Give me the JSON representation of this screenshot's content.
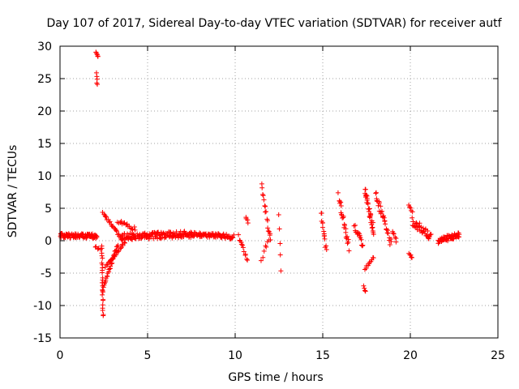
{
  "chart_data": {
    "type": "scatter",
    "title": "Day 107 of 2017, Sidereal Day-to-day VTEC variation (SDTVAR) for receiver autf",
    "xlabel": "GPS time / hours",
    "ylabel": "SDTVAR / TECUs",
    "xlim": [
      0,
      25
    ],
    "ylim": [
      -15,
      30
    ],
    "xticks": [
      0,
      5,
      10,
      15,
      20,
      25
    ],
    "yticks": [
      -15,
      -10,
      -5,
      0,
      5,
      10,
      15,
      20,
      25,
      30
    ],
    "grid": true,
    "marker": "+",
    "series_color": "#ff0000",
    "series": [
      {
        "name": "SDTVAR",
        "segments": [
          {
            "x0": 0.0,
            "x1": 2.1,
            "y0": 0.8,
            "y1": 0.7,
            "spread": 0.7,
            "n": 95
          },
          {
            "x0": 2.05,
            "x1": 2.15,
            "y0": 29.0,
            "y1": 28.6,
            "spread": 0.4,
            "n": 6
          },
          {
            "x0": 2.08,
            "x1": 2.12,
            "y0": 25.8,
            "y1": 24.0,
            "spread": 0.3,
            "n": 5
          },
          {
            "x0": 2.0,
            "x1": 2.3,
            "y0": -0.8,
            "y1": -1.5,
            "spread": 0.4,
            "n": 5
          },
          {
            "x0": 2.4,
            "x1": 2.45,
            "y0": -1.0,
            "y1": -11.8,
            "spread": 0.6,
            "n": 24
          },
          {
            "x0": 2.45,
            "x1": 3.3,
            "y0": -7.5,
            "y1": -0.5,
            "spread": 0.5,
            "n": 28
          },
          {
            "x0": 2.6,
            "x1": 3.7,
            "y0": -4.0,
            "y1": -0.2,
            "spread": 0.4,
            "n": 22
          },
          {
            "x0": 2.45,
            "x1": 3.5,
            "y0": 4.2,
            "y1": 0.4,
            "spread": 0.4,
            "n": 22
          },
          {
            "x0": 3.3,
            "x1": 4.3,
            "y0": 3.0,
            "y1": 1.8,
            "spread": 0.5,
            "n": 16
          },
          {
            "x0": 3.5,
            "x1": 7.5,
            "y0": 0.6,
            "y1": 1.0,
            "spread": 1.0,
            "n": 150
          },
          {
            "x0": 7.5,
            "x1": 9.9,
            "y0": 1.0,
            "y1": 0.6,
            "spread": 0.7,
            "n": 80
          },
          {
            "x0": 10.2,
            "x1": 10.7,
            "y0": 0.6,
            "y1": -3.0,
            "spread": 0.8,
            "n": 12
          },
          {
            "x0": 10.6,
            "x1": 10.75,
            "y0": 3.8,
            "y1": 2.8,
            "spread": 0.4,
            "n": 4
          },
          {
            "x0": 11.5,
            "x1": 12.0,
            "y0": 8.6,
            "y1": 0.0,
            "spread": 1.0,
            "n": 16
          },
          {
            "x0": 11.5,
            "x1": 12.0,
            "y0": -2.8,
            "y1": 1.0,
            "spread": 0.8,
            "n": 8
          },
          {
            "x0": 12.5,
            "x1": 12.6,
            "y0": 4.0,
            "y1": -4.5,
            "spread": 0.4,
            "n": 5
          },
          {
            "x0": 14.9,
            "x1": 15.2,
            "y0": 4.3,
            "y1": -1.5,
            "spread": 1.0,
            "n": 14
          },
          {
            "x0": 15.9,
            "x1": 16.5,
            "y0": 7.0,
            "y1": -1.0,
            "spread": 1.2,
            "n": 24
          },
          {
            "x0": 16.8,
            "x1": 17.3,
            "y0": 2.5,
            "y1": -1.0,
            "spread": 1.0,
            "n": 16
          },
          {
            "x0": 17.35,
            "x1": 17.45,
            "y0": -7.0,
            "y1": -7.9,
            "spread": 0.3,
            "n": 4
          },
          {
            "x0": 17.4,
            "x1": 17.9,
            "y0": 8.0,
            "y1": 1.5,
            "spread": 1.5,
            "n": 32
          },
          {
            "x0": 17.4,
            "x1": 17.9,
            "y0": -4.2,
            "y1": -2.5,
            "spread": 0.6,
            "n": 10
          },
          {
            "x0": 18.0,
            "x1": 18.9,
            "y0": 7.2,
            "y1": -0.5,
            "spread": 1.4,
            "n": 30
          },
          {
            "x0": 19.0,
            "x1": 19.2,
            "y0": 1.5,
            "y1": 0.0,
            "spread": 0.5,
            "n": 6
          },
          {
            "x0": 19.9,
            "x1": 20.1,
            "y0": 5.5,
            "y1": 4.5,
            "spread": 0.3,
            "n": 5
          },
          {
            "x0": 19.9,
            "x1": 20.1,
            "y0": -2.0,
            "y1": -2.6,
            "spread": 0.3,
            "n": 5
          },
          {
            "x0": 20.1,
            "x1": 21.2,
            "y0": 3.0,
            "y1": 0.5,
            "spread": 1.3,
            "n": 36
          },
          {
            "x0": 21.6,
            "x1": 22.8,
            "y0": 0.0,
            "y1": 0.9,
            "spread": 0.9,
            "n": 60
          }
        ]
      }
    ]
  }
}
